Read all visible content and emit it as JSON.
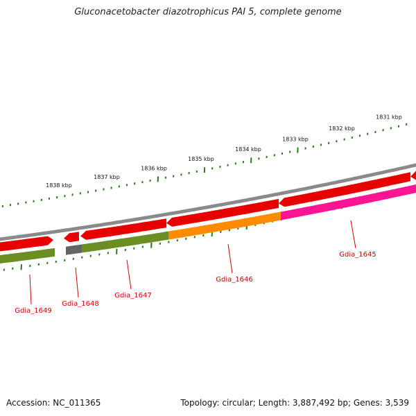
{
  "title": "Gluconacetobacter diazotrophicus PAI 5, complete genome",
  "footer": {
    "accession": "Accession: NC_011365",
    "summary": "Topology: circular; Length: 3,887,492 bp; Genes: 3,539"
  },
  "colors": {
    "backbone": "#8a8a8a",
    "forward_cds": "#e80000",
    "tick": "#2a7a1a",
    "label": "#d40000"
  },
  "kbp_labels": [
    "1838 kbp",
    "1837 kbp",
    "1836 kbp",
    "1835 kbp",
    "1834 kbp",
    "1833 kbp",
    "1832 kbp",
    "1831 kbp"
  ],
  "genes": [
    {
      "name": "Gdia_1649",
      "color": "#6b8e23"
    },
    {
      "name": "Gdia_1648",
      "color": "#646464"
    },
    {
      "name": "Gdia_1647",
      "color": "#6b8e23"
    },
    {
      "name": "Gdia_1646",
      "color": "#ff8c00"
    },
    {
      "name": "Gdia_1645",
      "color": "#ff1493"
    }
  ]
}
